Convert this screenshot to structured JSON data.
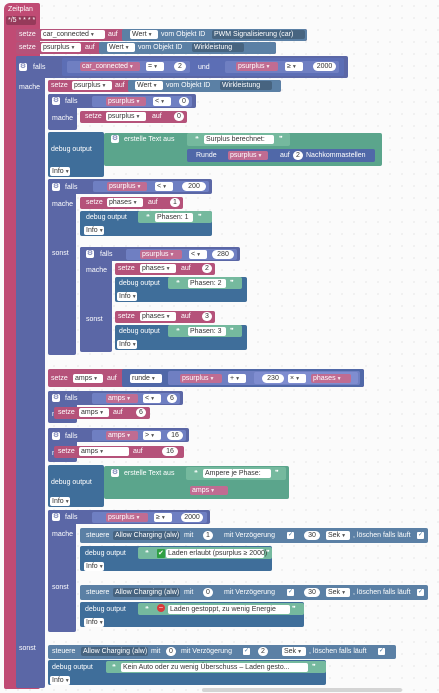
{
  "labels": {
    "zeitplan": "Zeitplan",
    "cron": "*/5 * * * *",
    "setze": "setze",
    "auf": "auf",
    "wert": "Wert",
    "vom_objekt_id": "vom Objekt ID",
    "falls": "falls",
    "mache": "mache",
    "sonst": "sonst",
    "und": "und",
    "debug_output": "debug output",
    "info": "Info",
    "erstelle_text_aus": "erstelle Text aus",
    "runde": "Runde",
    "runde_lc": "runde",
    "nachkommastellen": "Nachkommastellen",
    "steuere": "steuere",
    "mit": "mit",
    "mit_verzoegerung": "mit Verzögerung",
    "sek": "Sek",
    "loeschen_falls_laeuft": ", löschen falls läuft"
  },
  "vars": {
    "car_connected": "car_connected",
    "psurplus": "psurplus",
    "phases": "phases",
    "amps": "amps"
  },
  "objects": {
    "pwm": "PWM Signalisierung (car)",
    "wirkleistung": "Wirkleistung",
    "allow_charging": "Allow Charging (alw)"
  },
  "ops": {
    "eq": "=",
    "lt": "<",
    "ge": "≥",
    "gt": ">",
    "plus": "+",
    "times": "×"
  },
  "nums": {
    "n2": "2",
    "n2000": "2000",
    "n0": "0",
    "n200": "200",
    "n1": "1",
    "n280": "280",
    "n3": "3",
    "n230": "230",
    "n6": "6",
    "n16": "16",
    "n30": "30"
  },
  "texts": {
    "surplus": "Surplus berechnet:",
    "phasen1": "Phasen: 1",
    "phasen2": "Phasen: 2",
    "phasen3": "Phasen: 3",
    "ampere": "Ampere je Phase:",
    "laden_erlaubt": "Laden erlaubt (psurplus ≥ 2000)",
    "laden_gestoppt": "Laden gestoppt, zu wenig Energie",
    "kein_auto": "Kein Auto oder zu wenig Überschuss – Laden gesto..."
  },
  "icons": {
    "gear": "gear-icon",
    "quote": "quote-icon",
    "dropdown": "chevron-down-icon",
    "check": "checkbox-icon",
    "green_check": "green-check-icon",
    "red_stop": "red-stop-icon"
  },
  "colors": {
    "schedule": "#c04b74",
    "variable": "#b5527a",
    "control": "#5b67a6",
    "debug": "#3f6e9a",
    "text": "#5ba58c",
    "math": "#5068a8"
  }
}
